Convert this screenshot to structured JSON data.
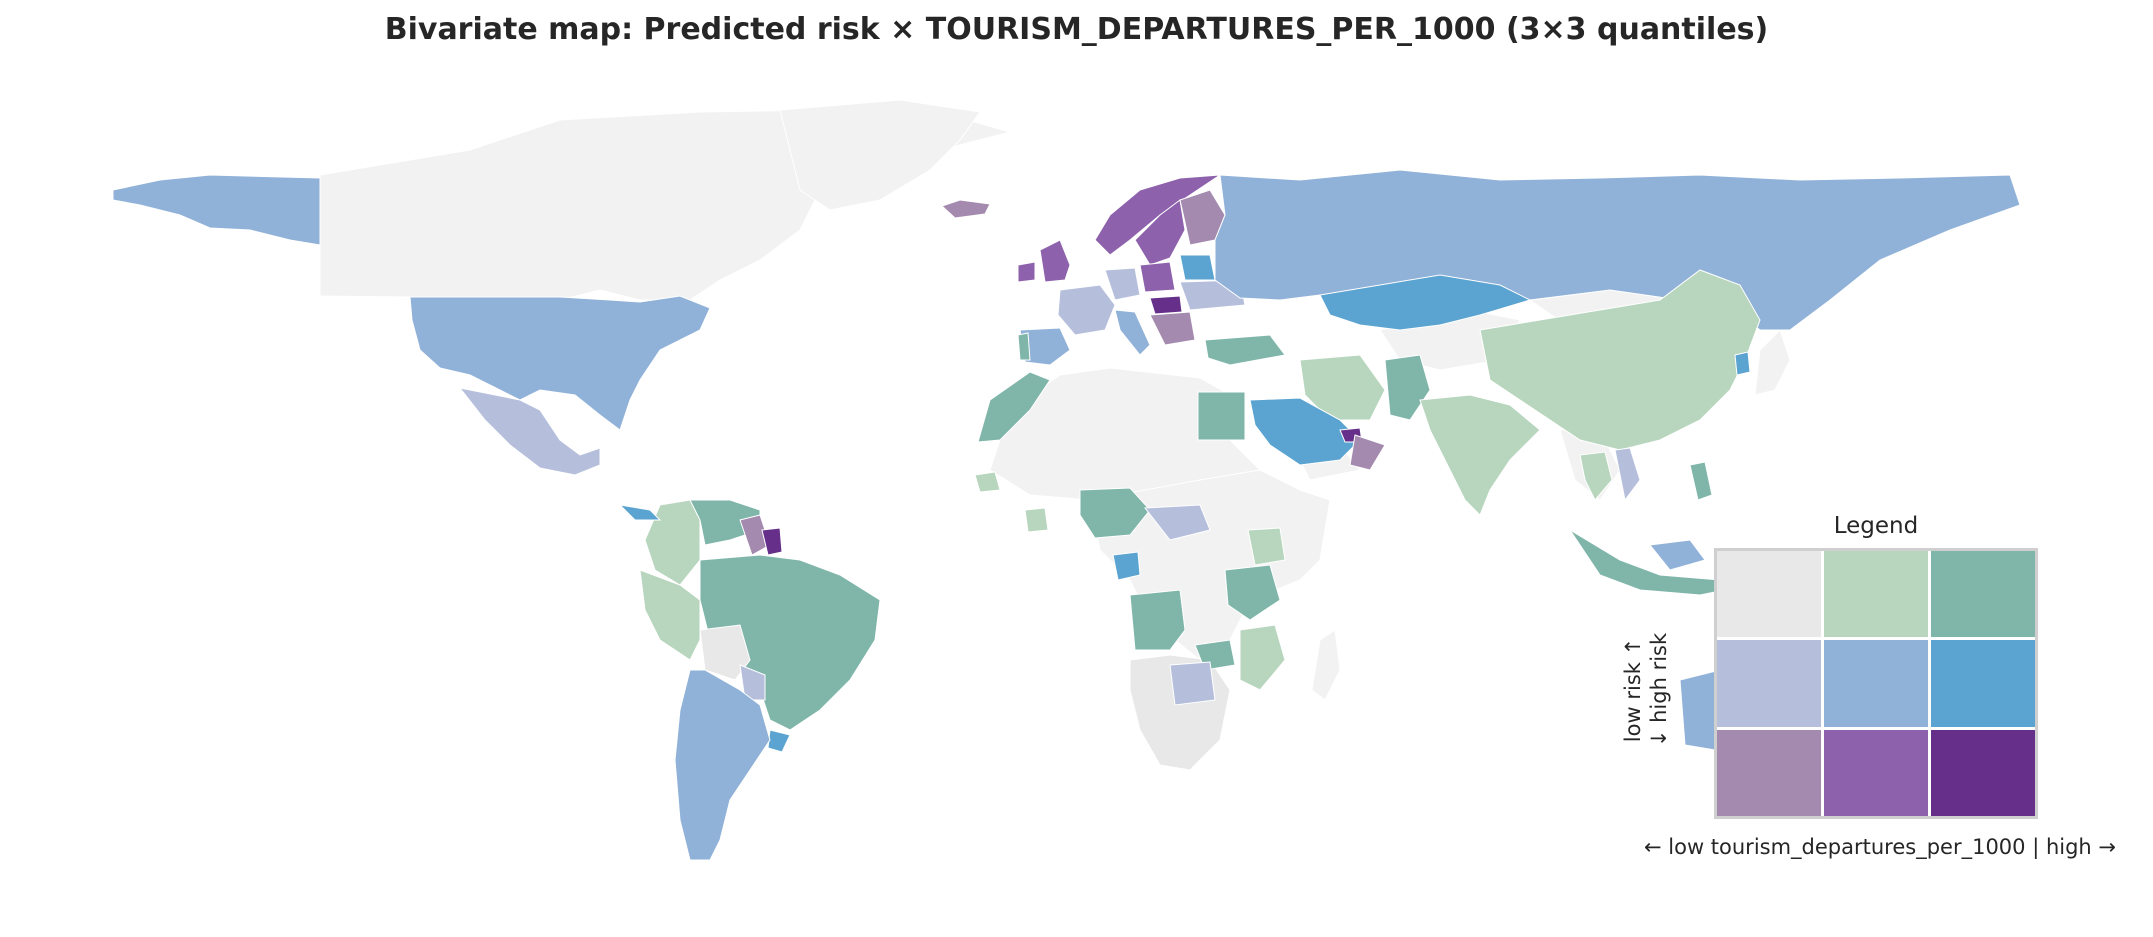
{
  "title": "Bivariate map: Predicted risk × TOURISM_DEPARTURES_PER_1000 (3×3 quantiles)",
  "colors": {
    "background": "#ffffff",
    "no_data": "#f2f2f2",
    "border": "#ffffff",
    "low_risk_low_tourism": "#e8e8e8",
    "low_risk_mid_tourism": "#b8d6be",
    "low_risk_high_tourism": "#7fb6a9",
    "mid_risk_low_tourism": "#b5bfdc",
    "mid_risk_mid_tourism": "#90b1d8",
    "mid_risk_high_tourism": "#5ba4d1",
    "high_risk_low_tourism": "#a48aae",
    "high_risk_mid_tourism": "#8d61ab",
    "high_risk_high_tourism": "#66308a"
  },
  "legend": {
    "title": "Legend",
    "y_label_top": "low risk ↑",
    "y_label_bottom": "↓ high risk",
    "x_label": "← low tourism_departures_per_1000  |  high →",
    "cells": [
      [
        "#e8e8e8",
        "#b8d6be",
        "#7fb6a9"
      ],
      [
        "#b5bfdc",
        "#90b1d8",
        "#5ba4d1"
      ],
      [
        "#a48aae",
        "#8d61ab",
        "#66308a"
      ]
    ]
  }
}
